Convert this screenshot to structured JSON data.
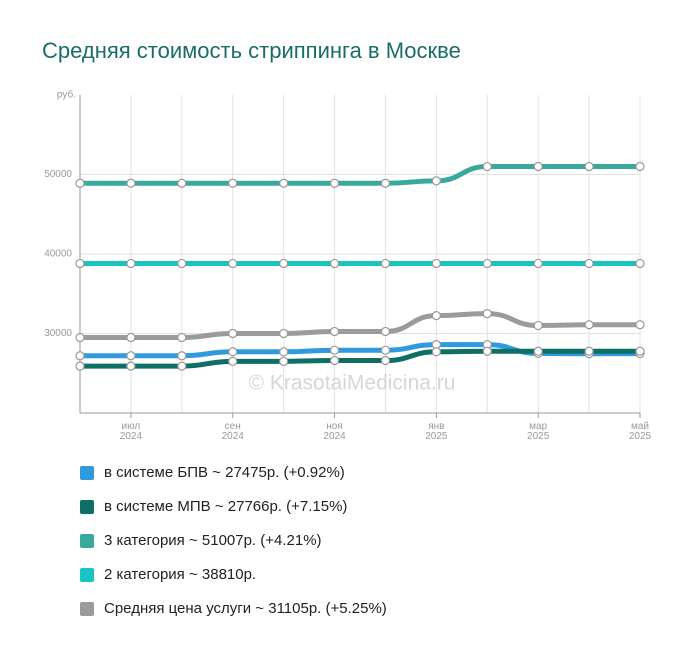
{
  "chart_data": {
    "type": "line",
    "title": "Средняя стоимость стриппинга в Москве",
    "y_label": "руб.",
    "watermark": "© KrasotaiMedicina.ru",
    "categories": [
      null,
      "июл 2024",
      null,
      "сен 2024",
      null,
      "ноя 2024",
      null,
      "янв 2025",
      null,
      "мар 2025",
      null,
      "май 2025"
    ],
    "ylim": [
      20000,
      60000
    ],
    "yticks": [
      30000,
      40000,
      50000
    ],
    "grid": true,
    "series": [
      {
        "name": "в системе БПВ ~ 27475р. (+0.92%)",
        "color": "#2f9ade",
        "values": [
          27200,
          27200,
          27200,
          27700,
          27700,
          27900,
          27900,
          28600,
          28600,
          27500,
          27450,
          27475
        ]
      },
      {
        "name": "в системе МПВ ~ 27766р. (+7.15%)",
        "color": "#0e6f64",
        "values": [
          25900,
          25900,
          25900,
          26500,
          26500,
          26600,
          26600,
          27700,
          27766,
          27766,
          27766,
          27766
        ]
      },
      {
        "name": "3 категория ~ 51007р. (+4.21%)",
        "color": "#3aa99b",
        "values": [
          48900,
          48900,
          48900,
          48900,
          48900,
          48900,
          48900,
          49200,
          51000,
          51007,
          51007,
          51007
        ]
      },
      {
        "name": "2 категория ~ 38810р.",
        "color": "#17c4c0",
        "values": [
          38810,
          38810,
          38810,
          38810,
          38810,
          38810,
          38810,
          38810,
          38810,
          38810,
          38810,
          38810
        ]
      },
      {
        "name": "Средняя цена услуги ~ 31105р. (+5.25%)",
        "color": "#9b9b9b",
        "values": [
          29500,
          29500,
          29500,
          30000,
          30000,
          30250,
          30250,
          32250,
          32500,
          31000,
          31100,
          31105
        ]
      }
    ]
  }
}
